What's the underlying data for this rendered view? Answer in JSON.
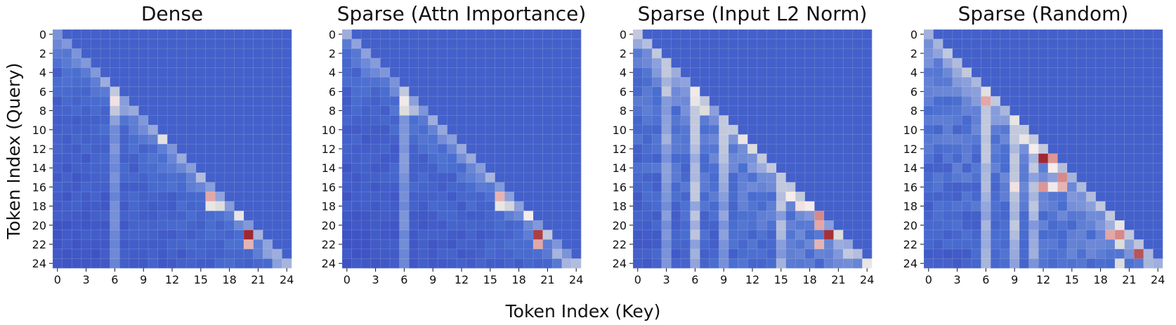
{
  "figure": {
    "xlabel": "Token Index (Key)",
    "ylabel": "Token Index (Query)"
  },
  "chart_data": [
    {
      "type": "heatmap",
      "title": "Dense",
      "size": 25,
      "x_ticks": [
        0,
        3,
        6,
        9,
        12,
        15,
        18,
        21,
        24
      ],
      "y_ticks": [
        0,
        2,
        4,
        6,
        8,
        10,
        12,
        14,
        16,
        18,
        20,
        22,
        24
      ],
      "mask": "causal",
      "colormap": "coolwarm",
      "hotspots": [
        [
          7,
          6,
          0.62
        ],
        [
          8,
          6,
          0.45
        ],
        [
          8,
          7,
          0.35
        ],
        [
          11,
          11,
          0.52
        ],
        [
          15,
          15,
          0.42
        ],
        [
          17,
          16,
          0.72
        ],
        [
          18,
          16,
          0.55
        ],
        [
          18,
          17,
          0.5
        ],
        [
          19,
          19,
          0.55
        ],
        [
          21,
          20,
          1.0
        ],
        [
          22,
          20,
          0.7
        ],
        [
          21,
          21,
          0.4
        ],
        [
          23,
          22,
          0.35
        ],
        [
          24,
          24,
          0.4
        ],
        [
          24,
          23,
          0.35
        ],
        [
          3,
          3,
          0.32
        ],
        [
          4,
          4,
          0.32
        ]
      ],
      "key_boost": [
        [
          6,
          0.18
        ]
      ],
      "background": 0.12
    },
    {
      "type": "heatmap",
      "title": "Sparse (Attn Importance)",
      "size": 25,
      "x_ticks": [
        0,
        3,
        6,
        9,
        12,
        15,
        18,
        21,
        24
      ],
      "y_ticks": [
        0,
        2,
        4,
        6,
        8,
        10,
        12,
        14,
        16,
        18,
        20,
        22,
        24
      ],
      "mask": "causal",
      "colormap": "coolwarm",
      "hotspots": [
        [
          7,
          6,
          0.58
        ],
        [
          8,
          6,
          0.5
        ],
        [
          8,
          7,
          0.42
        ],
        [
          15,
          15,
          0.4
        ],
        [
          17,
          16,
          0.7
        ],
        [
          18,
          16,
          0.55
        ],
        [
          18,
          17,
          0.48
        ],
        [
          19,
          19,
          0.6
        ],
        [
          21,
          20,
          0.95
        ],
        [
          22,
          20,
          0.72
        ],
        [
          21,
          21,
          0.45
        ],
        [
          23,
          22,
          0.4
        ],
        [
          24,
          23,
          0.4
        ],
        [
          24,
          24,
          0.42
        ]
      ],
      "key_boost": [
        [
          6,
          0.2
        ]
      ],
      "background": 0.12
    },
    {
      "type": "heatmap",
      "title": "Sparse (Input L2 Norm)",
      "size": 25,
      "x_ticks": [
        0,
        3,
        6,
        9,
        12,
        15,
        18,
        21,
        24
      ],
      "y_ticks": [
        0,
        2,
        4,
        6,
        8,
        10,
        12,
        14,
        16,
        18,
        20,
        22,
        24
      ],
      "mask": "causal",
      "colormap": "coolwarm",
      "hotspots": [
        [
          6,
          6,
          0.58
        ],
        [
          7,
          6,
          0.55
        ],
        [
          8,
          7,
          0.5
        ],
        [
          11,
          11,
          0.55
        ],
        [
          12,
          12,
          0.5
        ],
        [
          17,
          16,
          0.6
        ],
        [
          18,
          17,
          0.62
        ],
        [
          18,
          18,
          0.6
        ],
        [
          19,
          19,
          0.78
        ],
        [
          20,
          19,
          0.72
        ],
        [
          21,
          20,
          0.98
        ],
        [
          22,
          19,
          0.7
        ],
        [
          21,
          21,
          0.5
        ],
        [
          23,
          22,
          0.45
        ],
        [
          24,
          24,
          0.55
        ]
      ],
      "key_boost": [
        [
          6,
          0.28
        ],
        [
          3,
          0.2
        ],
        [
          9,
          0.2
        ],
        [
          15,
          0.2
        ]
      ],
      "background": 0.2
    },
    {
      "type": "heatmap",
      "title": "Sparse (Random)",
      "size": 25,
      "x_ticks": [
        0,
        3,
        6,
        9,
        12,
        15,
        18,
        21,
        24
      ],
      "y_ticks": [
        0,
        2,
        4,
        6,
        8,
        10,
        12,
        14,
        16,
        18,
        20,
        22,
        24
      ],
      "mask": "causal",
      "colormap": "coolwarm",
      "hotspots": [
        [
          6,
          6,
          0.52
        ],
        [
          7,
          6,
          0.72
        ],
        [
          9,
          9,
          0.55
        ],
        [
          11,
          10,
          0.55
        ],
        [
          12,
          11,
          0.6
        ],
        [
          13,
          12,
          1.0
        ],
        [
          13,
          13,
          0.75
        ],
        [
          14,
          13,
          0.6
        ],
        [
          15,
          14,
          0.78
        ],
        [
          16,
          9,
          0.62
        ],
        [
          16,
          12,
          0.75
        ],
        [
          16,
          14,
          0.7
        ],
        [
          16,
          13,
          0.58
        ],
        [
          20,
          20,
          0.55
        ],
        [
          21,
          19,
          0.72
        ],
        [
          21,
          20,
          0.78
        ],
        [
          22,
          20,
          0.5
        ],
        [
          23,
          22,
          0.9
        ],
        [
          24,
          20,
          0.5
        ]
      ],
      "key_boost": [
        [
          6,
          0.25
        ],
        [
          9,
          0.25
        ],
        [
          11,
          0.2
        ]
      ],
      "background": 0.22
    }
  ]
}
